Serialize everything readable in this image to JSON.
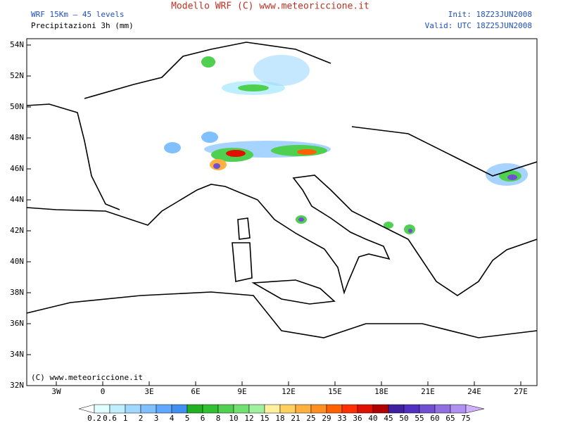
{
  "header": {
    "title": "Modello WRF (C) www.meteoriccione.it",
    "model": "WRF 15Km – 45 levels",
    "field": "Precipitazioni 3h (mm)",
    "init": "Init: 18Z23JUN2008",
    "valid": "Valid: UTC 18Z25JUN2008"
  },
  "map": {
    "lat_labels": [
      "54N",
      "52N",
      "50N",
      "48N",
      "46N",
      "44N",
      "42N",
      "40N",
      "38N",
      "36N",
      "34N",
      "32N"
    ],
    "lon_labels": [
      "3W",
      "0",
      "3E",
      "6E",
      "9E",
      "12E",
      "15E",
      "18E",
      "21E",
      "24E",
      "27E"
    ],
    "copyright": "(C) www.meteoriccione.it"
  },
  "colorbar": {
    "levels": [
      0.2,
      0.6,
      1,
      2,
      3,
      4,
      5,
      6,
      8,
      10,
      12,
      15,
      18,
      21,
      25,
      29,
      33,
      36,
      40,
      45,
      50,
      55,
      60,
      65,
      75
    ],
    "colors": [
      "#ffffff",
      "#e0ffff",
      "#bfefff",
      "#a0d8ff",
      "#80c0ff",
      "#60a8ff",
      "#4090f0",
      "#20b020",
      "#30c030",
      "#50d050",
      "#70e070",
      "#a0f0a0",
      "#fff0a0",
      "#ffd060",
      "#ffb040",
      "#ff9020",
      "#ff6000",
      "#ff3000",
      "#e01000",
      "#b00000",
      "#4020a0",
      "#5030c0",
      "#7050d0",
      "#9070e0",
      "#b090f0",
      "#d0b0ff"
    ]
  }
}
